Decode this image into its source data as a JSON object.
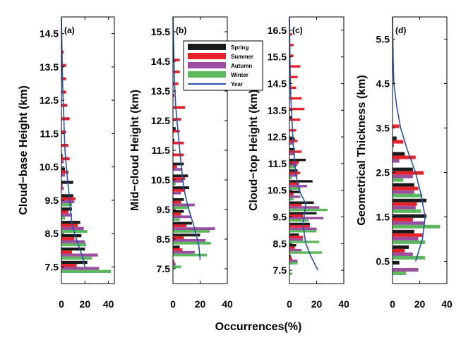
{
  "figure": {
    "xlabel": "Occurrences(%)"
  },
  "legend": [
    {
      "name": "Spring",
      "color": "#1a1a1a"
    },
    {
      "name": "Summer",
      "color": "#e8202a"
    },
    {
      "name": "Autumn",
      "color": "#9b4ea0"
    },
    {
      "name": "Winter",
      "color": "#5cb85c"
    },
    {
      "name": "Year",
      "color": "#2553a5"
    }
  ],
  "chart_data": [
    {
      "type": "bar",
      "orientation": "horizontal",
      "panel_label": "(a)",
      "ylabel": "Cloud−base Height (km)",
      "ylim": [
        7.0,
        15.0
      ],
      "yticks": [
        7.5,
        8.5,
        9.5,
        10.5,
        11.5,
        12.5,
        13.5,
        14.5
      ],
      "xticks": [
        0,
        20,
        40
      ],
      "xlim": [
        0,
        45
      ],
      "bins": [
        7.5,
        7.9,
        8.3,
        8.7,
        9.1,
        9.5,
        9.9,
        10.3,
        10.7,
        11.1,
        11.5,
        11.9,
        12.3,
        12.7,
        13.1,
        13.5,
        13.9,
        14.3
      ],
      "series": [
        {
          "name": "Spring",
          "values": [
            22,
            20,
            17,
            16,
            9,
            10,
            10,
            3,
            1,
            0,
            0,
            0,
            0,
            0,
            0,
            0,
            0,
            0
          ]
        },
        {
          "name": "Summer",
          "values": [
            13,
            9,
            11,
            14,
            6,
            12,
            1,
            6,
            7,
            6,
            4,
            7,
            5,
            4,
            4,
            4,
            2,
            0
          ]
        },
        {
          "name": "Autumn",
          "values": [
            32,
            31,
            20,
            19,
            9,
            11,
            2,
            3,
            2,
            0,
            0,
            0,
            0,
            0,
            0,
            0,
            0,
            0
          ]
        },
        {
          "name": "Winter",
          "values": [
            42,
            26,
            21,
            22,
            3,
            9,
            0,
            0,
            0,
            0,
            0,
            0,
            0,
            0,
            0,
            0,
            0,
            0
          ]
        }
      ],
      "year": {
        "x": [
          0,
          0.5,
          1,
          2,
          3,
          5,
          7,
          8,
          9,
          12,
          16,
          18,
          20
        ],
        "y": [
          15.0,
          14.0,
          13.0,
          12.0,
          11.0,
          10.2,
          9.5,
          9.1,
          8.8,
          8.4,
          8.0,
          7.8,
          7.5
        ]
      }
    },
    {
      "type": "bar",
      "orientation": "horizontal",
      "panel_label": "(b)",
      "ylabel": "Mid−cloud Height (km)",
      "ylim": [
        7.0,
        16.0
      ],
      "yticks": [
        7.5,
        8.5,
        9.5,
        10.5,
        11.5,
        12.5,
        13.5,
        14.5,
        15.5
      ],
      "xticks": [
        0,
        20,
        40
      ],
      "xlim": [
        0,
        40
      ],
      "bins": [
        7.7,
        8.1,
        8.5,
        8.9,
        9.3,
        9.7,
        10.1,
        10.5,
        10.9,
        11.3,
        11.7,
        12.1,
        12.5,
        12.9,
        13.3,
        13.7,
        14.1,
        14.5,
        14.9
      ],
      "series": [
        {
          "name": "Spring",
          "values": [
            0,
            5,
            20,
            14,
            8,
            8,
            12,
            11,
            8,
            0,
            1,
            2,
            0,
            0,
            0,
            0,
            0,
            0,
            0
          ]
        },
        {
          "name": "Summer",
          "values": [
            1,
            7,
            8,
            10,
            6,
            6,
            9,
            9,
            3,
            8,
            8,
            5,
            6,
            9,
            1,
            4,
            5,
            5,
            0
          ]
        },
        {
          "name": "Autumn",
          "values": [
            2,
            16,
            24,
            31,
            13,
            16,
            6,
            7,
            7,
            0,
            0,
            0,
            0,
            0,
            0,
            0,
            0,
            0,
            0
          ]
        },
        {
          "name": "Winter",
          "values": [
            6,
            25,
            28,
            27,
            5,
            12,
            0,
            2,
            0,
            0,
            0,
            0,
            0,
            0,
            0,
            0,
            0,
            0,
            0
          ]
        }
      ],
      "year": {
        "x": [
          0,
          0.5,
          1,
          2,
          4,
          6,
          8,
          11,
          15,
          19,
          20
        ],
        "y": [
          16.0,
          15.0,
          14.0,
          13.0,
          12.0,
          11.0,
          10.2,
          9.6,
          9.0,
          8.3,
          7.8
        ]
      }
    },
    {
      "type": "bar",
      "orientation": "horizontal",
      "panel_label": "(c)",
      "ylabel": "Cloud−top Height (km)",
      "ylim": [
        7.0,
        17.0
      ],
      "yticks": [
        7.5,
        8.5,
        9.5,
        10.5,
        11.5,
        12.5,
        13.5,
        14.5,
        15.5,
        16.5
      ],
      "xticks": [
        0,
        20,
        40
      ],
      "xlim": [
        0,
        40
      ],
      "bins": [
        7.5,
        7.9,
        8.3,
        8.7,
        9.1,
        9.5,
        9.9,
        10.3,
        10.7,
        11.1,
        11.5,
        11.9,
        12.3,
        12.7,
        13.1,
        13.5,
        13.9,
        14.3,
        14.7,
        15.1,
        15.5,
        15.9,
        16.3
      ],
      "series": [
        {
          "name": "Spring",
          "values": [
            0,
            1,
            5,
            7,
            15,
            20,
            18,
            8,
            17,
            6,
            12,
            4,
            4,
            0,
            2,
            0,
            0,
            0,
            0,
            0,
            0,
            0,
            0
          ]
        },
        {
          "name": "Summer",
          "values": [
            0,
            2,
            4,
            10,
            15,
            10,
            9,
            3,
            7,
            8,
            7,
            9,
            6,
            5,
            8,
            11,
            9,
            5,
            6,
            8,
            3,
            3,
            2
          ]
        },
        {
          "name": "Autumn",
          "values": [
            0,
            6,
            9,
            10,
            20,
            25,
            22,
            8,
            13,
            6,
            6,
            4,
            3,
            0,
            0,
            0,
            0,
            0,
            0,
            0,
            0,
            0,
            0
          ]
        },
        {
          "name": "Winter",
          "values": [
            2,
            6,
            24,
            22,
            20,
            14,
            28,
            3,
            8,
            2,
            4,
            0,
            0,
            0,
            0,
            0,
            0,
            0,
            0,
            0,
            0,
            0,
            0
          ]
        }
      ],
      "year": {
        "x": [
          0,
          0.5,
          1,
          2,
          3,
          5,
          8,
          12,
          10,
          12,
          16,
          21
        ],
        "y": [
          17.0,
          15.0,
          14.0,
          13.0,
          12.0,
          11.0,
          10.4,
          10.0,
          9.2,
          8.5,
          8.0,
          7.5
        ]
      }
    },
    {
      "type": "bar",
      "orientation": "horizontal",
      "panel_label": "(d)",
      "ylabel": "Geometrical Thickness (km)",
      "ylim": [
        0.0,
        6.0
      ],
      "yticks": [
        0.5,
        1.5,
        2.5,
        3.5,
        4.5,
        5.5
      ],
      "xticks": [
        0,
        20,
        40
      ],
      "xlim": [
        0,
        40
      ],
      "bins": [
        0.35,
        0.7,
        1.05,
        1.4,
        1.75,
        2.1,
        2.45,
        2.8,
        3.15,
        3.5
      ],
      "series": [
        {
          "name": "Spring",
          "values": [
            5,
            12,
            16,
            25,
            25,
            16,
            15,
            9,
            3,
            0
          ]
        },
        {
          "name": "Summer",
          "values": [
            0,
            9,
            22,
            15,
            18,
            19,
            23,
            17,
            8,
            5
          ]
        },
        {
          "name": "Autumn",
          "values": [
            19,
            15,
            19,
            23,
            17,
            16,
            15,
            5,
            1,
            0
          ]
        },
        {
          "name": "Winter",
          "values": [
            10,
            24,
            24,
            35,
            21,
            22,
            8,
            0,
            0,
            0
          ]
        }
      ],
      "year": {
        "x": [
          0,
          0.5,
          1,
          3,
          6,
          11,
          17,
          21,
          24,
          22,
          17
        ],
        "y": [
          6.0,
          5.0,
          4.5,
          4.0,
          3.5,
          3.0,
          2.5,
          2.0,
          1.5,
          1.0,
          0.5
        ]
      }
    }
  ]
}
